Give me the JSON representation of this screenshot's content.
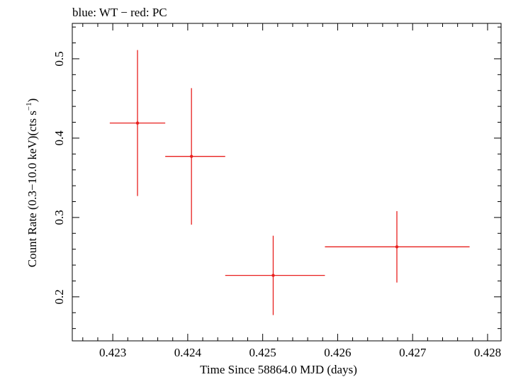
{
  "chart_data": {
    "type": "scatter",
    "title": "blue: WT − red: PC",
    "xlabel": "Time Since 58864.0 MJD (days)",
    "ylabel_main": "Count Rate (0.3−10.0 keV)(cts s",
    "ylabel_sup": "−1",
    "ylabel_close": ")",
    "xlim": [
      0.42246,
      0.42818
    ],
    "ylim": [
      0.1445,
      0.5446
    ],
    "x_ticks": [
      0.423,
      0.424,
      0.425,
      0.426,
      0.427,
      0.428
    ],
    "x_tick_labels": [
      "0.423",
      "0.424",
      "0.425",
      "0.426",
      "0.427",
      "0.428"
    ],
    "y_ticks": [
      0.2,
      0.3,
      0.4,
      0.5
    ],
    "y_tick_labels": [
      "0.2",
      "0.3",
      "0.4",
      "0.5"
    ],
    "grid": false,
    "series": [
      {
        "color": "#e8201e",
        "points": [
          {
            "x": 0.42333,
            "y": 0.419,
            "x_lo": 0.42296,
            "x_hi": 0.4237,
            "y_lo": 0.327,
            "y_hi": 0.511
          },
          {
            "x": 0.42405,
            "y": 0.377,
            "x_lo": 0.4237,
            "x_hi": 0.4245,
            "y_lo": 0.291,
            "y_hi": 0.463
          },
          {
            "x": 0.42514,
            "y": 0.227,
            "x_lo": 0.4245,
            "x_hi": 0.42583,
            "y_lo": 0.177,
            "y_hi": 0.277
          },
          {
            "x": 0.42679,
            "y": 0.263,
            "x_lo": 0.42583,
            "x_hi": 0.42776,
            "y_lo": 0.218,
            "y_hi": 0.308
          }
        ]
      }
    ]
  }
}
